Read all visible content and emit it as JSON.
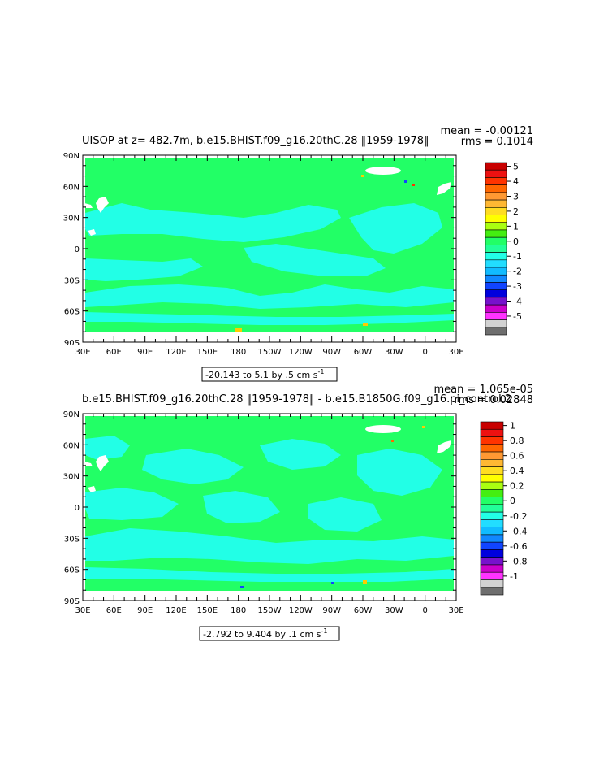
{
  "colors": {
    "land": "#ffffff",
    "zero_band": "#22ff66",
    "negative_band": "#22ffe6",
    "hotspot": "#ffcc00"
  },
  "chart_data": [
    {
      "type": "heatmap",
      "title": "UISOP at z= 482.7m, b.e15.BHIST.f09_g16.20thC.28 ‖1959-1978‖",
      "stats": {
        "mean": "mean = -0.00121",
        "rms": "rms = 0.1014"
      },
      "contour_info": "-20.143 to 5.1 by .5 cm s",
      "contour_info_sup": "-1",
      "y_ticks": [
        "90N",
        "60N",
        "30N",
        "0",
        "30S",
        "60S",
        "90S"
      ],
      "x_ticks": [
        "30E",
        "60E",
        "90E",
        "120E",
        "150E",
        "180",
        "150W",
        "120W",
        "90W",
        "60W",
        "30W",
        "0",
        "30E"
      ],
      "colorbar": {
        "labels": [
          "5",
          "4",
          "3",
          "2",
          "1",
          "0",
          "-1",
          "-2",
          "-3",
          "-4",
          "-5"
        ],
        "colors": [
          "#c80000",
          "#ee1111",
          "#ff3300",
          "#ff6600",
          "#ff9933",
          "#ffb833",
          "#ffdd22",
          "#ffff00",
          "#aaff11",
          "#44ee11",
          "#22ff66",
          "#22ff99",
          "#22ffe6",
          "#22ddff",
          "#11bbff",
          "#1188ff",
          "#1144ff",
          "#0000dd",
          "#7711cc",
          "#cc00cc",
          "#ff33ff",
          "#d2d2d2",
          "#6e6e6e"
        ]
      }
    },
    {
      "type": "heatmap",
      "title": "b.e15.BHIST.f09_g16.20thC.28 ‖1959-1978‖ - b.e15.B1850G.f09_g16.pi_control.2",
      "stats": {
        "mean": "mean = 1.065e-05",
        "rms": "rms = 0.02848"
      },
      "contour_info": "-2.792 to 9.404 by .1 cm s",
      "contour_info_sup": "-1",
      "y_ticks": [
        "90N",
        "60N",
        "30N",
        "0",
        "30S",
        "60S",
        "90S"
      ],
      "x_ticks": [
        "30E",
        "60E",
        "90E",
        "120E",
        "150E",
        "180",
        "150W",
        "120W",
        "90W",
        "60W",
        "30W",
        "0",
        "30E"
      ],
      "colorbar": {
        "labels": [
          "1",
          "0.8",
          "0.6",
          "0.4",
          "0.2",
          "0",
          "-0.2",
          "-0.4",
          "-0.6",
          "-0.8",
          "-1"
        ],
        "colors": [
          "#c80000",
          "#ee1111",
          "#ff3300",
          "#ff6600",
          "#ff9933",
          "#ffb833",
          "#ffdd22",
          "#ffff00",
          "#aaff11",
          "#44ee11",
          "#22ff66",
          "#22ff99",
          "#22ffe6",
          "#22ddff",
          "#11bbff",
          "#1188ff",
          "#1144ff",
          "#0000dd",
          "#7711cc",
          "#cc00cc",
          "#ff33ff",
          "#d2d2d2",
          "#6e6e6e"
        ]
      }
    }
  ]
}
